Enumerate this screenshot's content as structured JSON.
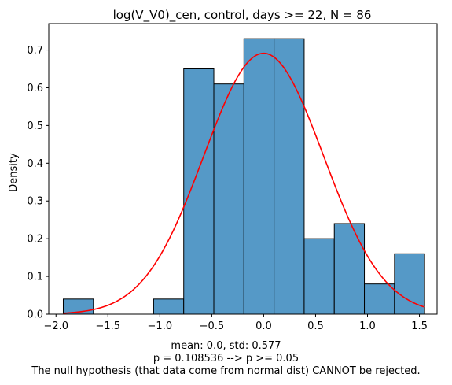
{
  "chart_data": {
    "type": "bar",
    "title": "log(V_V0)_cen, control, days >= 22, N = 86",
    "xlabel": "",
    "ylabel": "Density",
    "xlim": [
      -2.07,
      1.67
    ],
    "ylim": [
      0,
      0.77
    ],
    "xticks": [
      -2.0,
      -1.5,
      -1.0,
      -0.5,
      0.0,
      0.5,
      1.0,
      1.5
    ],
    "xtick_labels": [
      "−2.0",
      "−1.5",
      "−1.0",
      "−0.5",
      "0.0",
      "0.5",
      "1.0",
      "1.5"
    ],
    "yticks": [
      0.0,
      0.1,
      0.2,
      0.3,
      0.4,
      0.5,
      0.6,
      0.7
    ],
    "ytick_labels": [
      "0.0",
      "0.1",
      "0.2",
      "0.3",
      "0.4",
      "0.5",
      "0.6",
      "0.7"
    ],
    "bin_edges": [
      -1.93,
      -1.64,
      -1.35,
      -1.06,
      -0.77,
      -0.48,
      -0.19,
      0.1,
      0.39,
      0.68,
      0.97,
      1.26,
      1.55
    ],
    "values": [
      0.04,
      0.0,
      0.0,
      0.04,
      0.65,
      0.61,
      0.73,
      0.73,
      0.2,
      0.24,
      0.08,
      0.16
    ],
    "bar_color": "#5599c7",
    "edge_color": "#000000",
    "fit_curve": {
      "name": "",
      "color": "#ff0000",
      "mean": 0.0,
      "std": 0.577,
      "x_range": [
        -1.93,
        1.55
      ]
    },
    "grid": false
  },
  "caption": {
    "line1": "mean: 0.0, std: 0.577",
    "line2": "p = 0.108536 --> p >= 0.05",
    "line3": "The null hypothesis (that data come from normal dist) CANNOT be rejected."
  }
}
